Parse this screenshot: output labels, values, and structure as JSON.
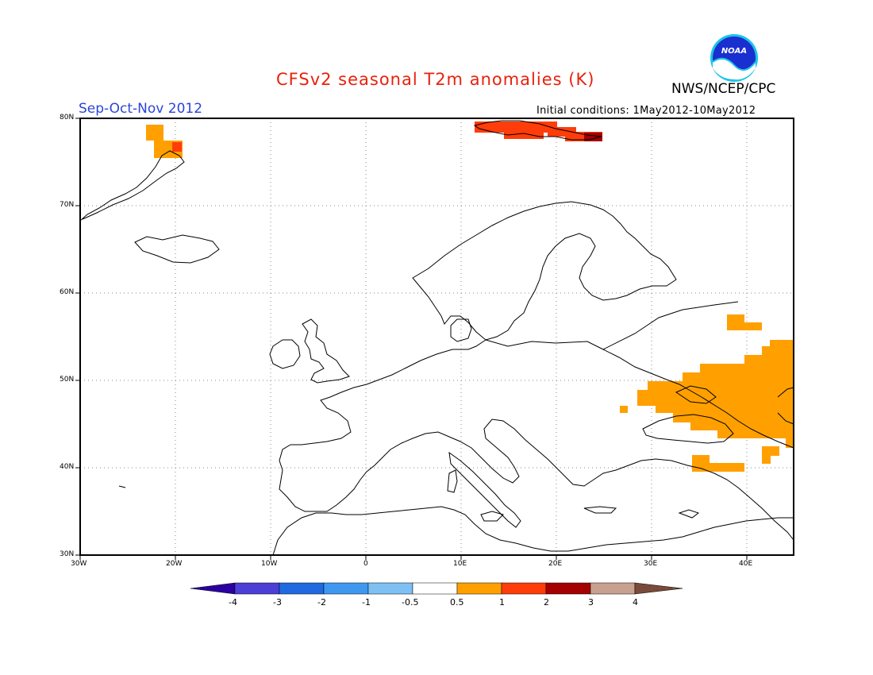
{
  "header": {
    "title": "CFSv2 seasonal T2m anomalies (K)",
    "agency": "NWS/NCEP/CPC",
    "period": "Sep-Oct-Nov 2012",
    "initial_conditions": "Initial conditions: 1May2012-10May2012",
    "logo_text": "NOAA"
  },
  "map": {
    "lon_range": [
      -30,
      45
    ],
    "lat_range": [
      30,
      80
    ],
    "lon_ticks": [
      {
        "value": -30,
        "label": "30W"
      },
      {
        "value": -20,
        "label": "20W"
      },
      {
        "value": -10,
        "label": "10W"
      },
      {
        "value": 0,
        "label": "0"
      },
      {
        "value": 10,
        "label": "10E"
      },
      {
        "value": 20,
        "label": "20E"
      },
      {
        "value": 30,
        "label": "30E"
      },
      {
        "value": 40,
        "label": "40E"
      }
    ],
    "lat_ticks": [
      {
        "value": 80,
        "label": "80N"
      },
      {
        "value": 70,
        "label": "70N"
      },
      {
        "value": 60,
        "label": "60N"
      },
      {
        "value": 50,
        "label": "50N"
      },
      {
        "value": 40,
        "label": "40N"
      },
      {
        "value": 30,
        "label": "30N"
      }
    ],
    "grid": "dotted"
  },
  "colorbar": {
    "boundaries": [
      "-4",
      "-3",
      "-2",
      "-1",
      "-0.5",
      "0.5",
      "1",
      "2",
      "3",
      "4"
    ],
    "colors": [
      "#2a00a0",
      "#4b3fd6",
      "#1f6ae0",
      "#3f98f0",
      "#7ec0f4",
      "#ffffff",
      "#ffa000",
      "#ff3d0a",
      "#a50000",
      "#c8a090",
      "#7a4a3a"
    ]
  },
  "anomaly_regions": [
    {
      "name": "greenland-east-coast-anomaly",
      "value_range": "0.5 to 1"
    },
    {
      "name": "svalbard-anomaly",
      "value_range": "1 to 2"
    },
    {
      "name": "ukraine-caspian-anomaly",
      "value_range": "0.5 to 1"
    },
    {
      "name": "turkey-east-anomaly",
      "value_range": "0.5 to 1"
    }
  ]
}
